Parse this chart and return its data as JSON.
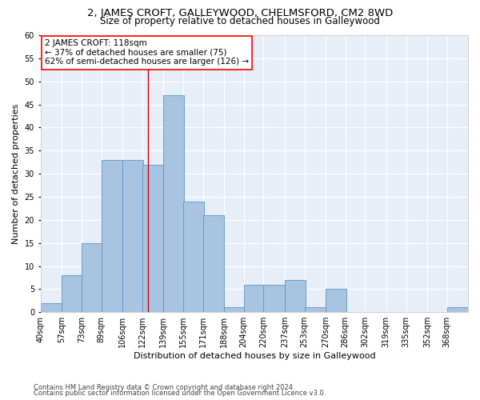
{
  "title1": "2, JAMES CROFT, GALLEYWOOD, CHELMSFORD, CM2 8WD",
  "title2": "Size of property relative to detached houses in Galleywood",
  "xlabel": "Distribution of detached houses by size in Galleywood",
  "ylabel": "Number of detached properties",
  "footnote1": "Contains HM Land Registry data © Crown copyright and database right 2024.",
  "footnote2": "Contains public sector information licensed under the Open Government Licence v3.0.",
  "annotation_line1": "2 JAMES CROFT: 118sqm",
  "annotation_line2": "← 37% of detached houses are smaller (75)",
  "annotation_line3": "62% of semi-detached houses are larger (126) →",
  "bar_color": "#a8c4e0",
  "bar_edge_color": "#5a96c8",
  "background_color": "#e8eef8",
  "grid_color": "#ffffff",
  "ref_line_color": "#cc0000",
  "ref_line_x": 118,
  "categories": [
    40,
    57,
    73,
    89,
    106,
    122,
    139,
    155,
    171,
    188,
    204,
    220,
    237,
    253,
    270,
    286,
    302,
    319,
    335,
    352,
    368
  ],
  "bin_width": 17,
  "values": [
    2,
    8,
    15,
    33,
    33,
    32,
    47,
    24,
    21,
    1,
    6,
    6,
    7,
    1,
    5,
    0,
    0,
    0,
    0,
    0,
    1
  ],
  "ylim": [
    0,
    60
  ],
  "yticks": [
    0,
    5,
    10,
    15,
    20,
    25,
    30,
    35,
    40,
    45,
    50,
    55,
    60
  ],
  "title1_fontsize": 9.5,
  "title2_fontsize": 8.5,
  "xlabel_fontsize": 8,
  "ylabel_fontsize": 8,
  "tick_fontsize": 7,
  "annotation_fontsize": 7.5,
  "footnote_fontsize": 6
}
